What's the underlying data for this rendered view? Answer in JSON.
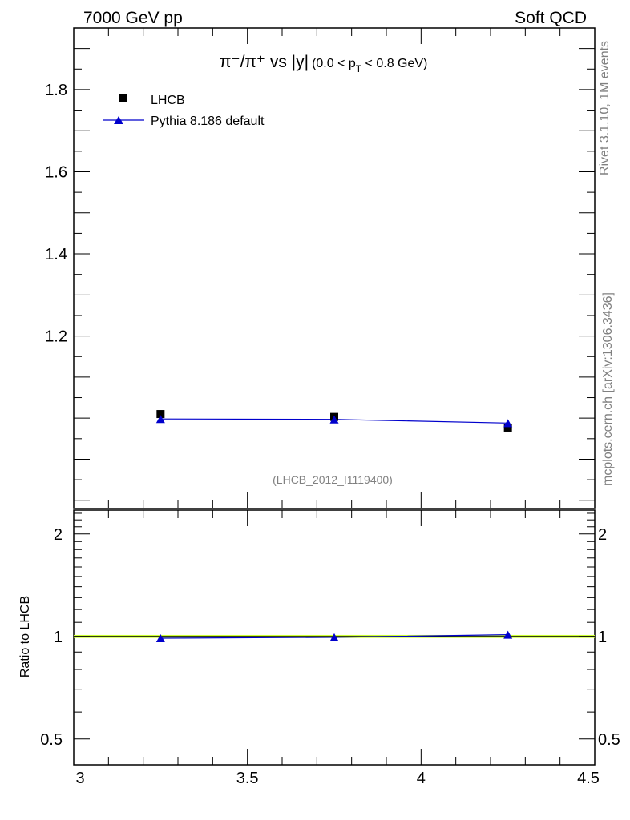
{
  "header": {
    "left": "7000 GeV pp",
    "right": "Soft QCD"
  },
  "side_text": {
    "rivet": "Rivet 3.1.10,  1M events",
    "mcplots": "mcplots.cern.ch [arXiv:1306.3436]"
  },
  "chart_data": [
    {
      "type": "scatter",
      "title": "π⁻/π⁺ vs |y| (0.0 < p_T < 0.8 GeV)",
      "title_parts": {
        "main": "π⁻/π⁺ vs |y|",
        "paren_open": "(0.0 < p",
        "sub": "T",
        "paren_close": " < 0.8 GeV)"
      },
      "analysis_tag": "(LHCB_2012_I1119400)",
      "xlim": [
        3.0,
        4.5
      ],
      "ylim": [
        0.78,
        1.95
      ],
      "y_ticks": [
        {
          "v": 1.2,
          "label": "1.2"
        },
        {
          "v": 1.4,
          "label": "1.4"
        },
        {
          "v": 1.6,
          "label": "1.6"
        },
        {
          "v": 1.8,
          "label": "1.8"
        }
      ],
      "legend_position": "top-left",
      "series": [
        {
          "name": "LHCB",
          "marker": "square",
          "color": "#000000",
          "x": [
            3.25,
            3.75,
            4.25
          ],
          "y": [
            1.01,
            1.003,
            0.977
          ]
        },
        {
          "name": "Pythia 8.186 default",
          "marker": "triangle",
          "color": "#0000cc",
          "x": [
            3.25,
            3.75,
            4.25
          ],
          "y": [
            0.998,
            0.997,
            0.988
          ]
        }
      ]
    },
    {
      "type": "line",
      "ylabel": "Ratio to LHCB",
      "xlim": [
        3.0,
        4.5
      ],
      "ylim": [
        0.42,
        2.35
      ],
      "log_scale_y": true,
      "x_ticks": [
        {
          "v": 3.0,
          "label": "3"
        },
        {
          "v": 3.5,
          "label": "3.5"
        },
        {
          "v": 4.0,
          "label": "4"
        },
        {
          "v": 4.5,
          "label": "4.5"
        }
      ],
      "y_ticks": [
        {
          "v": 0.5,
          "label": "0.5"
        },
        {
          "v": 1.0,
          "label": "1"
        },
        {
          "v": 2.0,
          "label": "2"
        }
      ],
      "band": {
        "y": [
          0.99,
          1.01
        ],
        "color": "#ccff33"
      },
      "series": [
        {
          "name": "Pythia 8.186 default",
          "color": "#0000cc",
          "x": [
            3.25,
            3.75,
            4.25
          ],
          "y": [
            0.988,
            0.994,
            1.012
          ]
        }
      ]
    }
  ]
}
